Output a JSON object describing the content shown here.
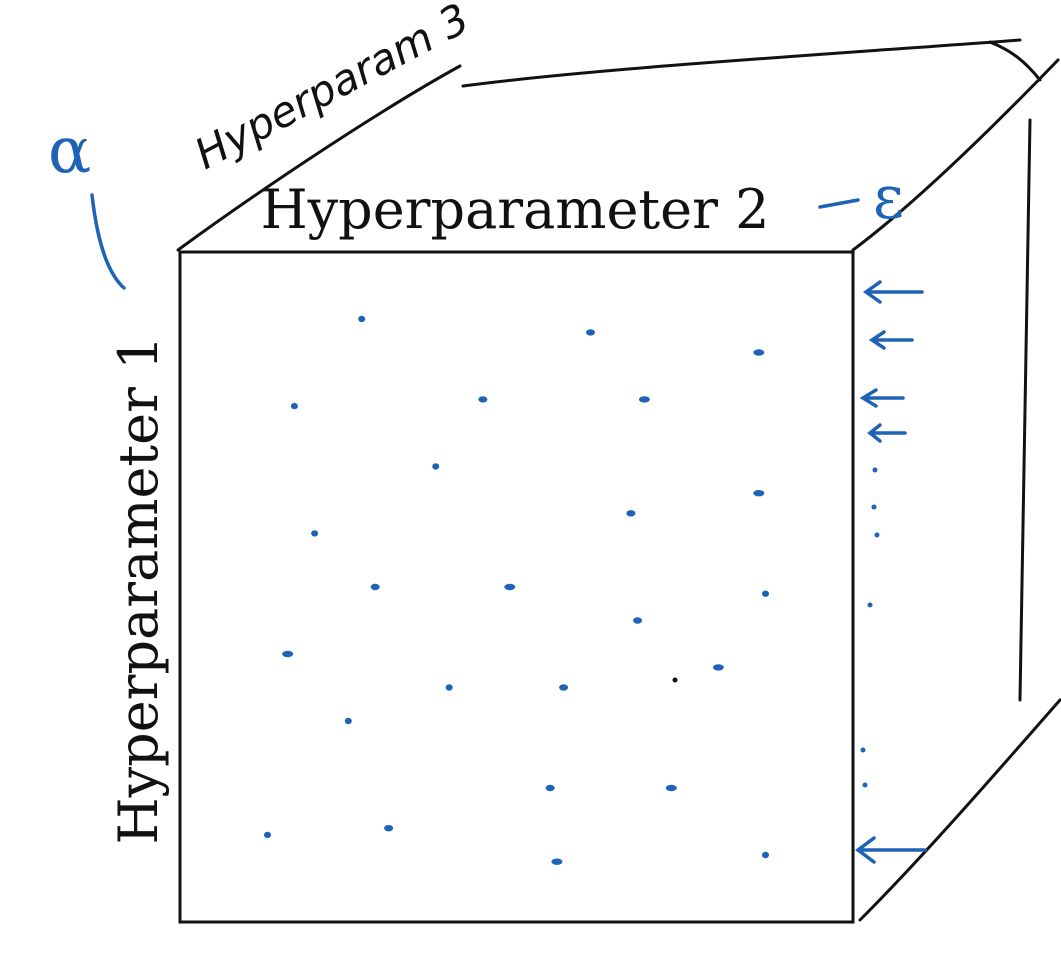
{
  "labels": {
    "horizontal_axis": "Hyperparameter 2",
    "vertical_axis": "Hyperparameter 1",
    "depth_axis_handwritten": "Hyperparam 3",
    "alpha_symbol": "α",
    "epsilon_symbol": "ε"
  },
  "colors": {
    "ink_black": "#111111",
    "ink_blue": "#1f63b7",
    "background": "#ffffff"
  },
  "sample_points": [
    [
      0.27,
      0.9
    ],
    [
      0.61,
      0.88
    ],
    [
      0.86,
      0.85
    ],
    [
      0.17,
      0.77
    ],
    [
      0.45,
      0.78
    ],
    [
      0.69,
      0.78
    ],
    [
      0.38,
      0.68
    ],
    [
      0.67,
      0.61
    ],
    [
      0.86,
      0.64
    ],
    [
      0.2,
      0.58
    ],
    [
      0.29,
      0.5
    ],
    [
      0.49,
      0.5
    ],
    [
      0.87,
      0.49
    ],
    [
      0.68,
      0.45
    ],
    [
      0.16,
      0.4
    ],
    [
      0.4,
      0.35
    ],
    [
      0.57,
      0.35
    ],
    [
      0.8,
      0.38
    ],
    [
      0.25,
      0.3
    ],
    [
      0.55,
      0.2
    ],
    [
      0.73,
      0.2
    ],
    [
      0.13,
      0.13
    ],
    [
      0.31,
      0.14
    ],
    [
      0.56,
      0.09
    ],
    [
      0.87,
      0.1
    ]
  ],
  "samples_note_count": 25
}
